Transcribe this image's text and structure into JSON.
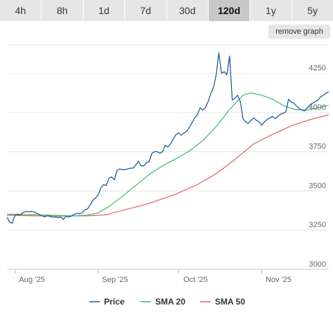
{
  "tabs": [
    {
      "label": "4h",
      "active": false
    },
    {
      "label": "8h",
      "active": false
    },
    {
      "label": "1d",
      "active": false
    },
    {
      "label": "7d",
      "active": false
    },
    {
      "label": "30d",
      "active": false
    },
    {
      "label": "120d",
      "active": true
    },
    {
      "label": "1y",
      "active": false
    },
    {
      "label": "5y",
      "active": false
    }
  ],
  "remove_graph_label": "remove graph",
  "chart_data": {
    "type": "line",
    "x_range": [
      "2025-07-29",
      "2025-11-26"
    ],
    "ylim": [
      3000,
      4430
    ],
    "y_ticks": [
      "3000",
      "3250",
      "3500",
      "3750",
      "4000",
      "4250"
    ],
    "x_ticks": [
      {
        "label": "Aug '25",
        "date": "2025-08-01"
      },
      {
        "label": "Sep '25",
        "date": "2025-09-01"
      },
      {
        "label": "Oct '25",
        "date": "2025-10-01"
      },
      {
        "label": "Nov '25",
        "date": "2025-11-01"
      }
    ],
    "grid": true,
    "legend_position": "bottom",
    "series": [
      {
        "name": "Price",
        "color": "#1f5f99",
        "points": [
          [
            "2025-07-29",
            3333
          ],
          [
            "2025-07-30",
            3300
          ],
          [
            "2025-07-31",
            3295
          ],
          [
            "2025-08-01",
            3345
          ],
          [
            "2025-08-02",
            3352
          ],
          [
            "2025-08-03",
            3348
          ],
          [
            "2025-08-04",
            3362
          ],
          [
            "2025-08-05",
            3370
          ],
          [
            "2025-08-06",
            3367
          ],
          [
            "2025-08-07",
            3370
          ],
          [
            "2025-08-08",
            3368
          ],
          [
            "2025-08-09",
            3358
          ],
          [
            "2025-08-10",
            3350
          ],
          [
            "2025-08-11",
            3342
          ],
          [
            "2025-08-12",
            3335
          ],
          [
            "2025-08-13",
            3342
          ],
          [
            "2025-08-14",
            3338
          ],
          [
            "2025-08-15",
            3332
          ],
          [
            "2025-08-16",
            3334
          ],
          [
            "2025-08-17",
            3330
          ],
          [
            "2025-08-18",
            3334
          ],
          [
            "2025-08-19",
            3318
          ],
          [
            "2025-08-20",
            3338
          ],
          [
            "2025-08-21",
            3334
          ],
          [
            "2025-08-22",
            3340
          ],
          [
            "2025-08-23",
            3350
          ],
          [
            "2025-08-24",
            3358
          ],
          [
            "2025-08-25",
            3355
          ],
          [
            "2025-08-26",
            3360
          ],
          [
            "2025-08-27",
            3380
          ],
          [
            "2025-08-28",
            3385
          ],
          [
            "2025-08-29",
            3410
          ],
          [
            "2025-08-30",
            3440
          ],
          [
            "2025-08-31",
            3455
          ],
          [
            "2025-09-01",
            3475
          ],
          [
            "2025-09-02",
            3520
          ],
          [
            "2025-09-03",
            3540
          ],
          [
            "2025-09-04",
            3535
          ],
          [
            "2025-09-05",
            3580
          ],
          [
            "2025-09-06",
            3590
          ],
          [
            "2025-09-07",
            3570
          ],
          [
            "2025-09-08",
            3630
          ],
          [
            "2025-09-09",
            3640
          ],
          [
            "2025-09-10",
            3635
          ],
          [
            "2025-09-11",
            3635
          ],
          [
            "2025-09-12",
            3640
          ],
          [
            "2025-09-13",
            3645
          ],
          [
            "2025-09-14",
            3645
          ],
          [
            "2025-09-15",
            3665
          ],
          [
            "2025-09-16",
            3690
          ],
          [
            "2025-09-17",
            3660
          ],
          [
            "2025-09-18",
            3660
          ],
          [
            "2025-09-19",
            3680
          ],
          [
            "2025-09-20",
            3685
          ],
          [
            "2025-09-21",
            3740
          ],
          [
            "2025-09-22",
            3750
          ],
          [
            "2025-09-23",
            3750
          ],
          [
            "2025-09-24",
            3740
          ],
          [
            "2025-09-25",
            3750
          ],
          [
            "2025-09-26",
            3790
          ],
          [
            "2025-09-27",
            3780
          ],
          [
            "2025-09-28",
            3800
          ],
          [
            "2025-09-29",
            3830
          ],
          [
            "2025-09-30",
            3860
          ],
          [
            "2025-10-01",
            3870
          ],
          [
            "2025-10-02",
            3855
          ],
          [
            "2025-10-03",
            3870
          ],
          [
            "2025-10-04",
            3880
          ],
          [
            "2025-10-05",
            3905
          ],
          [
            "2025-10-06",
            3935
          ],
          [
            "2025-10-07",
            3965
          ],
          [
            "2025-10-08",
            3985
          ],
          [
            "2025-10-09",
            4030
          ],
          [
            "2025-10-10",
            4015
          ],
          [
            "2025-10-11",
            4030
          ],
          [
            "2025-10-12",
            4070
          ],
          [
            "2025-10-13",
            4120
          ],
          [
            "2025-10-14",
            4160
          ],
          [
            "2025-10-15",
            4240
          ],
          [
            "2025-10-16",
            4380
          ],
          [
            "2025-10-17",
            4250
          ],
          [
            "2025-10-18",
            4260
          ],
          [
            "2025-10-19",
            4240
          ],
          [
            "2025-10-20",
            4360
          ],
          [
            "2025-10-21",
            4080
          ],
          [
            "2025-10-22",
            4090
          ],
          [
            "2025-10-23",
            4110
          ],
          [
            "2025-10-24",
            4070
          ],
          [
            "2025-10-25",
            3960
          ],
          [
            "2025-10-26",
            3940
          ],
          [
            "2025-10-27",
            3930
          ],
          [
            "2025-10-28",
            3950
          ],
          [
            "2025-10-29",
            3965
          ],
          [
            "2025-10-30",
            3950
          ],
          [
            "2025-10-31",
            3940
          ],
          [
            "2025-11-01",
            3920
          ],
          [
            "2025-11-02",
            3940
          ],
          [
            "2025-11-03",
            3955
          ],
          [
            "2025-11-04",
            3965
          ],
          [
            "2025-11-05",
            3975
          ],
          [
            "2025-11-06",
            3960
          ],
          [
            "2025-11-07",
            3975
          ],
          [
            "2025-11-08",
            3990
          ],
          [
            "2025-11-09",
            3995
          ],
          [
            "2025-11-10",
            4005
          ],
          [
            "2025-11-11",
            4085
          ],
          [
            "2025-11-12",
            4065
          ],
          [
            "2025-11-13",
            4060
          ],
          [
            "2025-11-14",
            4040
          ],
          [
            "2025-11-15",
            4025
          ],
          [
            "2025-11-16",
            4015
          ],
          [
            "2025-11-17",
            4010
          ],
          [
            "2025-11-18",
            4030
          ],
          [
            "2025-11-19",
            4050
          ],
          [
            "2025-11-20",
            4060
          ],
          [
            "2025-11-21",
            4070
          ],
          [
            "2025-11-22",
            4080
          ],
          [
            "2025-11-23",
            4100
          ],
          [
            "2025-11-24",
            4110
          ],
          [
            "2025-11-25",
            4125
          ],
          [
            "2025-11-26",
            4130
          ]
        ]
      },
      {
        "name": "SMA 20",
        "color": "#3dbb6c",
        "points": [
          [
            "2025-07-29",
            3352
          ],
          [
            "2025-08-03",
            3350
          ],
          [
            "2025-08-08",
            3348
          ],
          [
            "2025-08-13",
            3346
          ],
          [
            "2025-08-18",
            3343
          ],
          [
            "2025-08-23",
            3341
          ],
          [
            "2025-08-28",
            3346
          ],
          [
            "2025-09-01",
            3360
          ],
          [
            "2025-09-05",
            3400
          ],
          [
            "2025-09-10",
            3465
          ],
          [
            "2025-09-15",
            3535
          ],
          [
            "2025-09-20",
            3605
          ],
          [
            "2025-09-25",
            3660
          ],
          [
            "2025-09-30",
            3705
          ],
          [
            "2025-10-05",
            3755
          ],
          [
            "2025-10-10",
            3820
          ],
          [
            "2025-10-15",
            3910
          ],
          [
            "2025-10-20",
            4020
          ],
          [
            "2025-10-25",
            4110
          ],
          [
            "2025-10-28",
            4125
          ],
          [
            "2025-11-01",
            4110
          ],
          [
            "2025-11-05",
            4085
          ],
          [
            "2025-11-09",
            4045
          ],
          [
            "2025-11-13",
            4020
          ],
          [
            "2025-11-18",
            4015
          ],
          [
            "2025-11-22",
            4030
          ],
          [
            "2025-11-26",
            4045
          ]
        ]
      },
      {
        "name": "SMA 50",
        "color": "#e06060",
        "points": [
          [
            "2025-07-29",
            3345
          ],
          [
            "2025-08-08",
            3341
          ],
          [
            "2025-08-18",
            3340
          ],
          [
            "2025-08-28",
            3341
          ],
          [
            "2025-09-04",
            3348
          ],
          [
            "2025-09-10",
            3375
          ],
          [
            "2025-09-20",
            3420
          ],
          [
            "2025-09-30",
            3480
          ],
          [
            "2025-10-08",
            3540
          ],
          [
            "2025-10-15",
            3610
          ],
          [
            "2025-10-22",
            3700
          ],
          [
            "2025-10-29",
            3800
          ],
          [
            "2025-11-05",
            3860
          ],
          [
            "2025-11-12",
            3915
          ],
          [
            "2025-11-19",
            3955
          ],
          [
            "2025-11-26",
            3985
          ]
        ]
      }
    ]
  }
}
